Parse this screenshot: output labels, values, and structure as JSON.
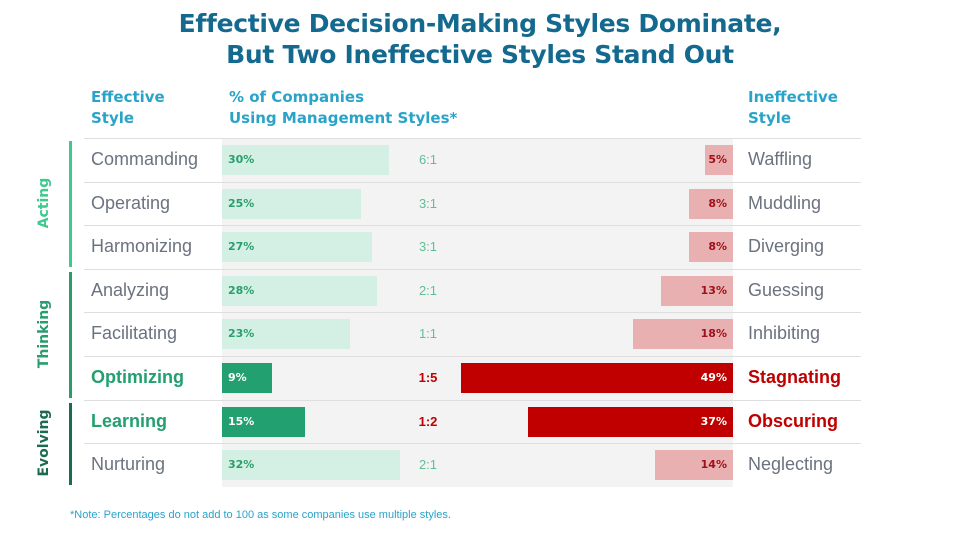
{
  "title_line1": "Effective Decision-Making Styles Dominate,",
  "title_line2": "But Two Ineffective Styles Stand Out",
  "headers": {
    "effective_line1": "Effective",
    "effective_line2": "Style",
    "pct_line1": "% of Companies",
    "pct_line2": "Using Management Styles*",
    "ineffective_line1": "Ineffective",
    "ineffective_line2": "Style"
  },
  "colors": {
    "title": "#14698f",
    "header": "#2aa3c9",
    "effective_bar": "#d4f0e4",
    "effective_bar_highlight": "#22a06f",
    "ineffective_bar": "#e8b0b0",
    "ineffective_bar_highlight": "#c00000",
    "group_acting": "#3ec98e",
    "group_thinking": "#2a9d6e",
    "group_evolving": "#1b6b50"
  },
  "groups": [
    {
      "label": "Acting",
      "rows": [
        0,
        1,
        2
      ]
    },
    {
      "label": "Thinking",
      "rows": [
        3,
        4,
        5
      ]
    },
    {
      "label": "Evolving",
      "rows": [
        6,
        7
      ]
    }
  ],
  "note": "*Note: Percentages do not add to 100 as some companies use multiple styles.",
  "chart_data": {
    "type": "bar",
    "title": "Effective Decision-Making Styles Dominate, But Two Ineffective Styles Stand Out",
    "xlabel": "% of Companies Using Management Styles*",
    "ylabel": "",
    "unit": "%",
    "categories": [
      "Commanding / Waffling",
      "Operating / Muddling",
      "Harmonizing / Diverging",
      "Analyzing / Guessing",
      "Facilitating / Inhibiting",
      "Optimizing / Stagnating",
      "Learning / Obscuring",
      "Nurturing / Neglecting"
    ],
    "rows": [
      {
        "group": "Acting",
        "effective": "Commanding",
        "effective_pct": 30,
        "ratio": "6:1",
        "ineffective": "Waffling",
        "ineffective_pct": 5,
        "highlight": false
      },
      {
        "group": "Acting",
        "effective": "Operating",
        "effective_pct": 25,
        "ratio": "3:1",
        "ineffective": "Muddling",
        "ineffective_pct": 8,
        "highlight": false
      },
      {
        "group": "Acting",
        "effective": "Harmonizing",
        "effective_pct": 27,
        "ratio": "3:1",
        "ineffective": "Diverging",
        "ineffective_pct": 8,
        "highlight": false
      },
      {
        "group": "Thinking",
        "effective": "Analyzing",
        "effective_pct": 28,
        "ratio": "2:1",
        "ineffective": "Guessing",
        "ineffective_pct": 13,
        "highlight": false
      },
      {
        "group": "Thinking",
        "effective": "Facilitating",
        "effective_pct": 23,
        "ratio": "1:1",
        "ineffective": "Inhibiting",
        "ineffective_pct": 18,
        "highlight": false
      },
      {
        "group": "Thinking",
        "effective": "Optimizing",
        "effective_pct": 9,
        "ratio": "1:5",
        "ineffective": "Stagnating",
        "ineffective_pct": 49,
        "highlight": true
      },
      {
        "group": "Evolving",
        "effective": "Learning",
        "effective_pct": 15,
        "ratio": "1:2",
        "ineffective": "Obscuring",
        "ineffective_pct": 37,
        "highlight": true
      },
      {
        "group": "Evolving",
        "effective": "Nurturing",
        "effective_pct": 32,
        "ratio": "2:1",
        "ineffective": "Neglecting",
        "ineffective_pct": 14,
        "highlight": false
      }
    ],
    "series": [
      {
        "name": "Effective Style",
        "values": [
          30,
          25,
          27,
          28,
          23,
          9,
          15,
          32
        ]
      },
      {
        "name": "Ineffective Style",
        "values": [
          5,
          8,
          8,
          13,
          18,
          49,
          37,
          14
        ]
      }
    ],
    "xlim": [
      0,
      50
    ],
    "grid": false,
    "legend": "none"
  }
}
